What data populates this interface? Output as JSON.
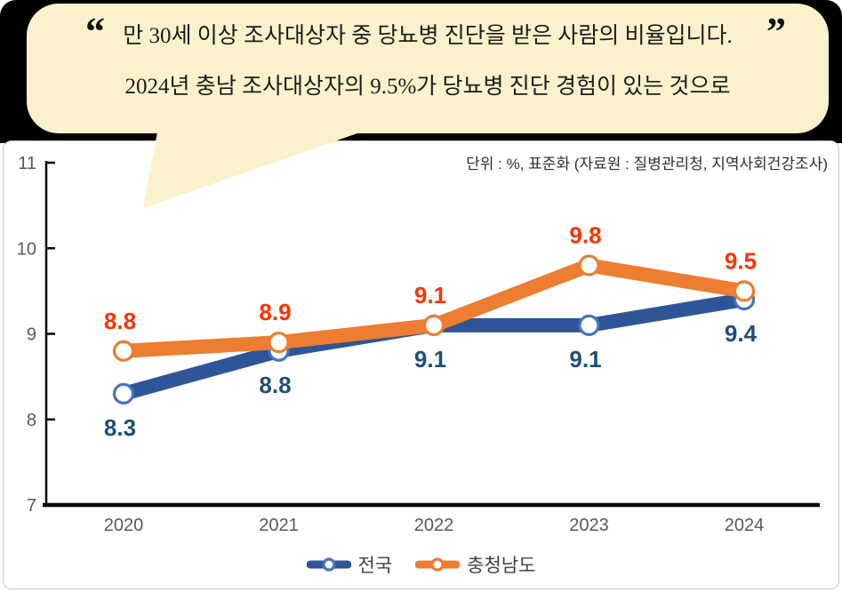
{
  "bubble": {
    "quote_open": "“",
    "quote_close": "”",
    "line1": "만 30세 이상 조사대상자 중 당뇨병 진단을 받은 사람의 비율입니다.",
    "line2": "2024년 충남 조사대상자의 9.5%가 당뇨병 진단 경험이 있는 것으로"
  },
  "chart": {
    "unit_note": "단위 : %, 표준화 (자료원 : 질병관리청, 지역사회건강조사)"
  },
  "chart_data": {
    "type": "line",
    "categories": [
      "2020",
      "2021",
      "2022",
      "2023",
      "2024"
    ],
    "series": [
      {
        "name": "전국",
        "values": [
          8.3,
          8.8,
          9.1,
          9.1,
          9.4
        ],
        "line_color": "#2E5597",
        "marker_ring_color": "#4472C4",
        "label_color": "#1F4E79",
        "label_position": "below"
      },
      {
        "name": "충청남도",
        "values": [
          8.8,
          8.9,
          9.1,
          9.8,
          9.5
        ],
        "line_color": "#ED7D31",
        "marker_ring_color": "#ED7D31",
        "label_color": "#FF3200",
        "label_position": "above"
      }
    ],
    "ylim": [
      7,
      11
    ],
    "yticks": [
      7,
      8,
      9,
      10,
      11
    ],
    "grid": false,
    "legend_position": "bottom",
    "marker": "white-circle",
    "axis_color": "#000000",
    "tick_label_color": "#595959"
  },
  "colors": {
    "bubble_background": "#FCF1CD",
    "header_background": "#000000",
    "card_border": "#C9C9C9",
    "national_line": "#2E5597",
    "chungnam_line": "#ED7D31",
    "national_label": "#1F4E79",
    "chungnam_label": "#FF3200"
  }
}
